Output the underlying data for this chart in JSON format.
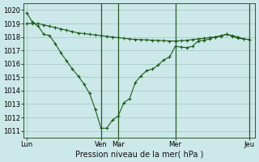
{
  "background_color": "#cce8e8",
  "grid_color": "#aacccc",
  "line_color": "#1a5c1a",
  "xlabel": "Pression niveau de la mer( hPa )",
  "ylim": [
    1010.5,
    1020.5
  ],
  "yticks": [
    1011,
    1012,
    1013,
    1014,
    1015,
    1016,
    1017,
    1018,
    1019,
    1020
  ],
  "xtick_labels": [
    "Lun",
    "Ven",
    "Mar",
    "Mer",
    "Jeu"
  ],
  "xtick_positions": [
    0,
    13,
    16,
    26,
    39
  ],
  "vline_positions": [
    13,
    16,
    26,
    39
  ],
  "xlim": [
    -0.5,
    40
  ],
  "line1_x": [
    0,
    1,
    2,
    3,
    4,
    5,
    6,
    7,
    8,
    9,
    10,
    11,
    12,
    13,
    14,
    15,
    16,
    17,
    18,
    19,
    20,
    21,
    22,
    23,
    24,
    25,
    26,
    27,
    28,
    29,
    30,
    31,
    32,
    33,
    34,
    35,
    36,
    37,
    38,
    39
  ],
  "line1_y": [
    1019.8,
    1019.1,
    1018.8,
    1018.2,
    1018.1,
    1017.5,
    1016.8,
    1016.2,
    1015.6,
    1015.1,
    1014.5,
    1013.8,
    1012.6,
    1011.2,
    1011.2,
    1011.8,
    1012.1,
    1013.1,
    1013.4,
    1014.6,
    1015.1,
    1015.5,
    1015.6,
    1015.9,
    1016.3,
    1016.5,
    1017.3,
    1017.25,
    1017.2,
    1017.3,
    1017.7,
    1017.75,
    1017.85,
    1018.0,
    1018.05,
    1018.2,
    1018.05,
    1017.9,
    1017.85,
    1017.8
  ],
  "line2_x": [
    0,
    1,
    2,
    3,
    4,
    5,
    6,
    7,
    8,
    9,
    10,
    11,
    12,
    13,
    14,
    15,
    16,
    17,
    18,
    19,
    20,
    21,
    22,
    23,
    24,
    25,
    26,
    27,
    28,
    29,
    30,
    31,
    32,
    33,
    34,
    35,
    36,
    37,
    38,
    39
  ],
  "line2_y": [
    1019.0,
    1019.0,
    1019.0,
    1018.9,
    1018.8,
    1018.7,
    1018.6,
    1018.5,
    1018.4,
    1018.3,
    1018.25,
    1018.2,
    1018.15,
    1018.1,
    1018.05,
    1018.0,
    1017.95,
    1017.9,
    1017.85,
    1017.82,
    1017.8,
    1017.78,
    1017.76,
    1017.74,
    1017.72,
    1017.7,
    1017.7,
    1017.72,
    1017.75,
    1017.8,
    1017.85,
    1017.9,
    1017.95,
    1018.0,
    1018.1,
    1018.2,
    1018.1,
    1018.0,
    1017.85,
    1017.8
  ]
}
